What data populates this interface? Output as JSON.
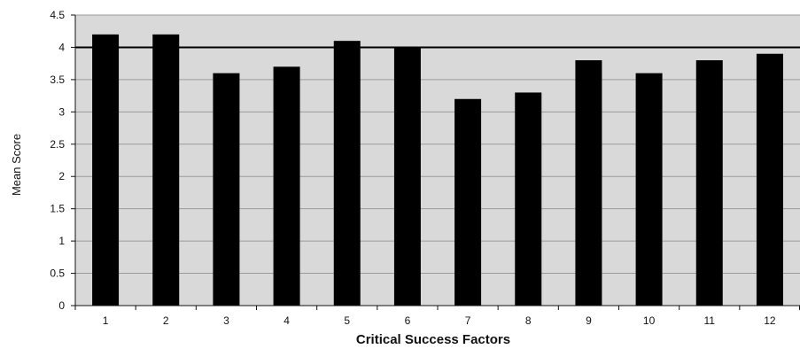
{
  "chart_data": {
    "type": "bar",
    "title": "",
    "xlabel": "Critical Success Factors",
    "ylabel": "Mean Score",
    "categories": [
      "1",
      "2",
      "3",
      "4",
      "5",
      "6",
      "7",
      "8",
      "9",
      "10",
      "11",
      "12"
    ],
    "values": [
      4.2,
      4.2,
      3.6,
      3.7,
      4.1,
      4.0,
      3.2,
      3.3,
      3.8,
      3.6,
      3.8,
      3.9
    ],
    "ylim": [
      0,
      4.5
    ],
    "yticks": [
      "0",
      "0.5",
      "1",
      "1.5",
      "2",
      "2.5",
      "3",
      "3.5",
      "4",
      "4.5"
    ],
    "reference_line": 4,
    "grid": true,
    "legend": "none",
    "colors": {
      "bar": "#000000",
      "plot_background": "#d9d9d9",
      "gridline": "#9a9a9a",
      "reference_line": "#000000"
    }
  }
}
